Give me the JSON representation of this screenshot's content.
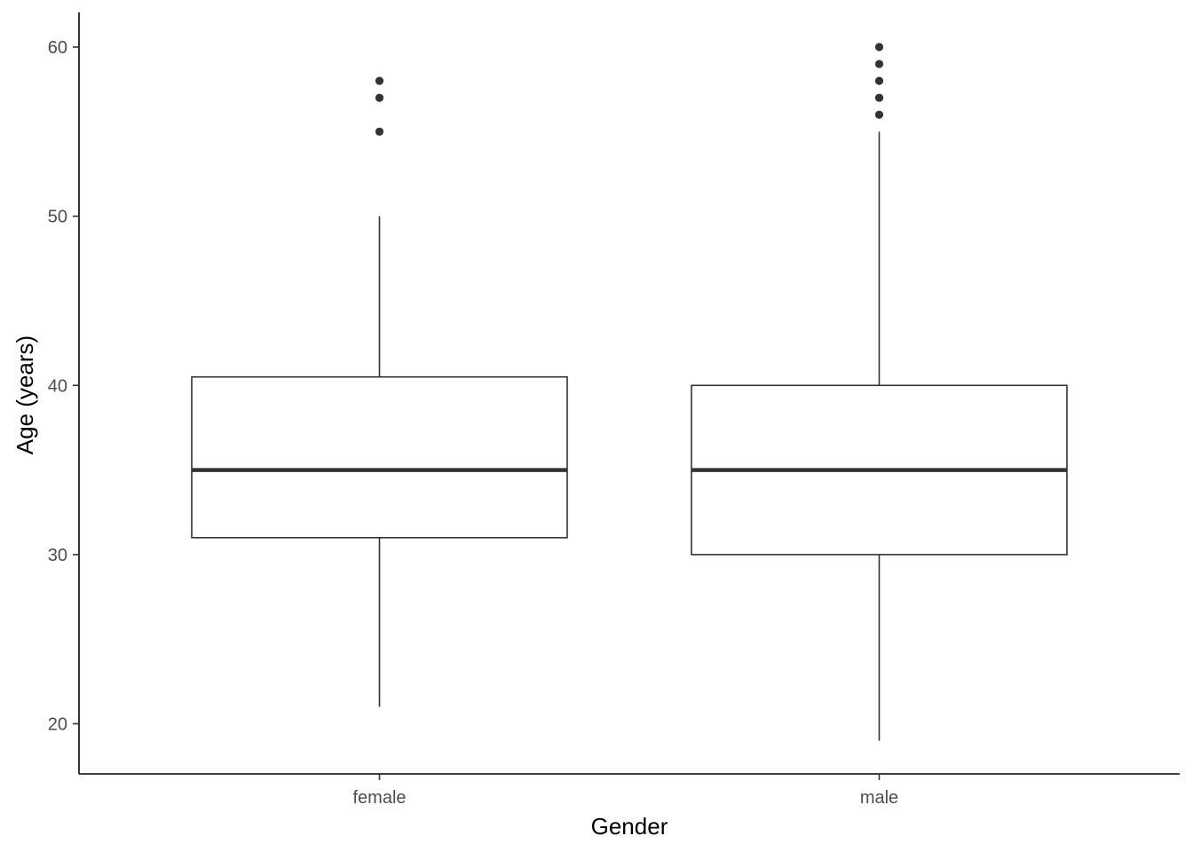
{
  "chart_data": {
    "type": "boxplot",
    "xlabel": "Gender",
    "ylabel": "Age (years)",
    "ylim": [
      18,
      62
    ],
    "yticks": [
      20,
      30,
      40,
      50,
      60
    ],
    "grid": false,
    "categories": [
      "female",
      "male"
    ],
    "boxes": [
      {
        "category": "female",
        "whisker_low": 21,
        "q1": 31,
        "median": 35,
        "q3": 40.5,
        "whisker_high": 50,
        "outliers": [
          55,
          57,
          58
        ]
      },
      {
        "category": "male",
        "whisker_low": 19,
        "q1": 30,
        "median": 35,
        "q3": 40,
        "whisker_high": 55,
        "outliers": [
          56,
          57,
          58,
          59,
          60
        ]
      }
    ],
    "colors": {
      "box_stroke": "#333333",
      "box_fill": "#ffffff",
      "axis": "#000000",
      "tick_text": "#4d4d4d"
    }
  }
}
